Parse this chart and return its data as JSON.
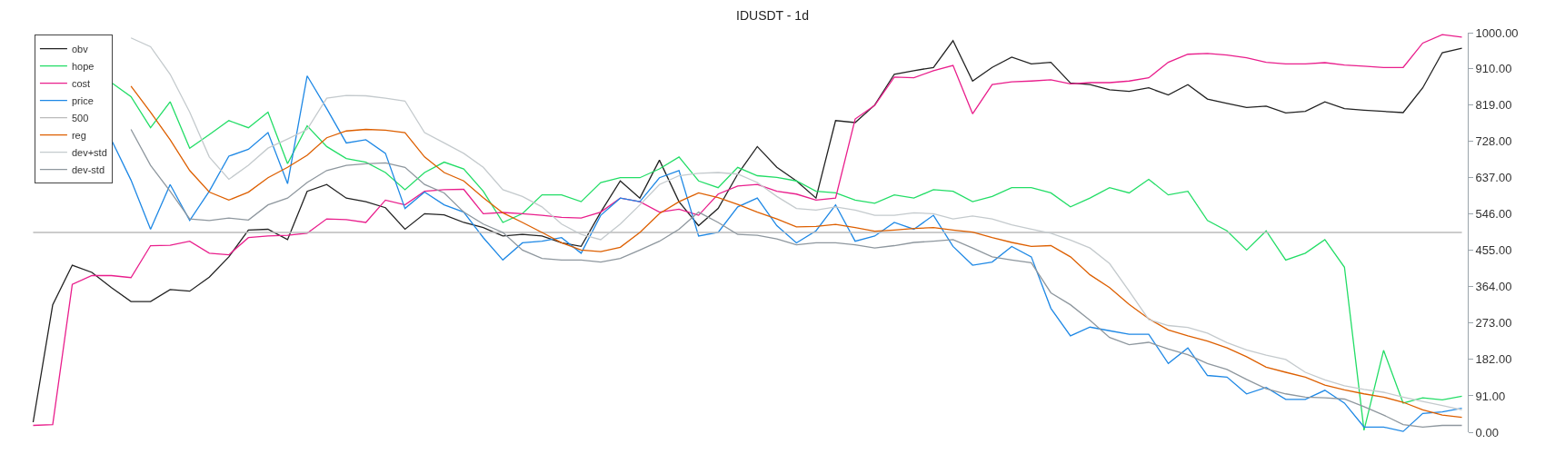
{
  "chart_data": {
    "type": "line",
    "title": "IDUSDT - 1d",
    "categories": [
      null,
      null,
      null,
      null,
      null,
      null,
      null,
      null,
      null,
      null,
      null,
      null,
      null,
      null,
      null,
      null,
      null,
      null,
      null,
      null,
      null,
      null,
      null,
      null,
      null,
      null,
      null,
      null,
      null,
      null,
      null,
      null,
      null,
      null,
      null,
      null,
      null,
      null,
      null,
      null,
      null,
      null,
      null,
      null,
      null,
      null,
      null,
      null,
      null,
      null,
      null,
      null,
      null,
      null,
      null,
      null,
      null,
      null,
      null,
      null,
      null,
      null,
      null,
      null,
      null,
      null,
      null,
      null,
      null,
      null,
      null,
      null,
      null,
      null
    ],
    "series": [
      {
        "name": "obv",
        "color": "#222222",
        "values": [
          25,
          319,
          418,
          400,
          362,
          327,
          327,
          357,
          353,
          388,
          439,
          506,
          508,
          482,
          603,
          620,
          586,
          577,
          562,
          508,
          547,
          544,
          525,
          512,
          491,
          495,
          491,
          474,
          465,
          551,
          629,
          586,
          681,
          577,
          517,
          560,
          646,
          715,
          663,
          629,
          586,
          780,
          775,
          819,
          896,
          905,
          913,
          980,
          879,
          913,
          939,
          922,
          926,
          874,
          870,
          857,
          853,
          862,
          844,
          870,
          834,
          823,
          813,
          816,
          799,
          803,
          827,
          810,
          806,
          803,
          800,
          862,
          950,
          961
        ]
      },
      {
        "name": "hope",
        "color": "#22dd66",
        "values": [
          null,
          null,
          null,
          null,
          875,
          840,
          762,
          827,
          711,
          745,
          780,
          762,
          801,
          672,
          767,
          715,
          685,
          676,
          650,
          607,
          650,
          676,
          659,
          603,
          525,
          547,
          594,
          594,
          577,
          625,
          637,
          637,
          659,
          689,
          629,
          612,
          663,
          642,
          638,
          629,
          603,
          599,
          581,
          573,
          594,
          586,
          607,
          603,
          577,
          590,
          612,
          612,
          599,
          564,
          586,
          612,
          599,
          633,
          594,
          603,
          530,
          504,
          456,
          504,
          431,
          448,
          482,
          413,
          5,
          205,
          73,
          86,
          81,
          90
        ]
      },
      {
        "name": "cost",
        "color": "#e91e8c",
        "values": [
          17,
          19,
          370,
          392,
          392,
          387,
          467,
          468,
          478,
          448,
          444,
          487,
          491,
          493,
          498,
          534,
          532,
          525,
          581,
          569,
          603,
          607,
          608,
          547,
          550,
          547,
          543,
          538,
          536,
          551,
          586,
          577,
          551,
          558,
          543,
          596,
          616,
          620,
          603,
          596,
          581,
          586,
          784,
          818,
          889,
          887,
          905,
          918,
          797,
          870,
          877,
          879,
          882,
          872,
          875,
          875,
          879,
          887,
          926,
          946,
          948,
          944,
          937,
          926,
          922,
          922,
          925,
          919,
          916,
          913,
          913,
          974,
          995,
          989
        ]
      },
      {
        "name": "price",
        "color": "#1e88e5",
        "values": [
          null,
          null,
          null,
          null,
          732,
          631,
          508,
          620,
          530,
          603,
          691,
          708,
          750,
          622,
          892,
          810,
          724,
          732,
          698,
          560,
          601,
          569,
          551,
          487,
          431,
          474,
          478,
          487,
          448,
          543,
          586,
          577,
          637,
          655,
          491,
          500,
          564,
          586,
          517,
          474,
          504,
          569,
          478,
          491,
          525,
          508,
          543,
          465,
          418,
          426,
          465,
          439,
          310,
          241,
          263,
          254,
          245,
          245,
          172,
          211,
          142,
          138,
          96,
          112,
          82,
          82,
          105,
          73,
          13,
          13,
          2,
          47,
          51,
          60
        ]
      },
      {
        "name": "500",
        "color": "#bbbbbb",
        "values": [
          500,
          500,
          500,
          500,
          500,
          500,
          500,
          500,
          500,
          500,
          500,
          500,
          500,
          500,
          500,
          500,
          500,
          500,
          500,
          500,
          500,
          500,
          500,
          500,
          500,
          500,
          500,
          500,
          500,
          500,
          500,
          500,
          500,
          500,
          500,
          500,
          500,
          500,
          500,
          500,
          500,
          500,
          500,
          500,
          500,
          500,
          500,
          500,
          500,
          500,
          500,
          500,
          500,
          500,
          500,
          500,
          500,
          500,
          500,
          500,
          500,
          500,
          500,
          500,
          500,
          500,
          500,
          500,
          500,
          500,
          500,
          500,
          500,
          500
        ]
      },
      {
        "name": "reg",
        "color": "#dd5f00",
        "values": [
          null,
          null,
          null,
          null,
          null,
          866,
          801,
          732,
          655,
          601,
          581,
          601,
          637,
          663,
          693,
          737,
          754,
          758,
          756,
          750,
          689,
          650,
          629,
          587,
          549,
          525,
          500,
          474,
          456,
          452,
          463,
          500,
          547,
          577,
          599,
          587,
          570,
          551,
          534,
          514,
          515,
          520,
          512,
          503,
          506,
          510,
          512,
          506,
          501,
          487,
          475,
          465,
          467,
          439,
          394,
          362,
          320,
          284,
          256,
          241,
          228,
          211,
          189,
          163,
          150,
          138,
          118,
          106,
          96,
          88,
          75,
          56,
          43,
          37
        ]
      },
      {
        "name": "dev+std",
        "color": "#c4cacd",
        "values": [
          null,
          null,
          null,
          null,
          null,
          987,
          965,
          896,
          801,
          689,
          633,
          668,
          711,
          734,
          758,
          836,
          843,
          842,
          836,
          829,
          750,
          724,
          698,
          663,
          607,
          590,
          564,
          521,
          495,
          482,
          521,
          569,
          620,
          642,
          648,
          650,
          646,
          625,
          590,
          560,
          556,
          564,
          556,
          543,
          543,
          549,
          547,
          534,
          541,
          534,
          519,
          508,
          498,
          481,
          461,
          422,
          353,
          282,
          267,
          262,
          248,
          224,
          206,
          193,
          182,
          150,
          131,
          116,
          107,
          100,
          88,
          77,
          67,
          56
        ]
      },
      {
        "name": "dev-std",
        "color": "#8e979e",
        "values": [
          null,
          null,
          null,
          null,
          null,
          758,
          668,
          603,
          534,
          530,
          536,
          531,
          569,
          586,
          625,
          655,
          668,
          672,
          674,
          663,
          620,
          599,
          551,
          521,
          500,
          456,
          435,
          431,
          431,
          426,
          435,
          456,
          478,
          508,
          551,
          525,
          495,
          493,
          484,
          469,
          474,
          474,
          469,
          461,
          467,
          475,
          478,
          482,
          461,
          439,
          431,
          424,
          349,
          319,
          280,
          237,
          219,
          225,
          208,
          194,
          172,
          157,
          132,
          109,
          96,
          88,
          86,
          83,
          64,
          43,
          19,
          13,
          17,
          17
        ]
      }
    ],
    "ylim": [
      0,
      1000
    ],
    "yticks": [
      {
        "value": 0,
        "label": "0.00"
      },
      {
        "value": 91,
        "label": "91.00"
      },
      {
        "value": 182,
        "label": "182.00"
      },
      {
        "value": 273,
        "label": "273.00"
      },
      {
        "value": 364,
        "label": "364.00"
      },
      {
        "value": 455,
        "label": "455.00"
      },
      {
        "value": 546,
        "label": "546.00"
      },
      {
        "value": 637,
        "label": "637.00"
      },
      {
        "value": 728,
        "label": "728.00"
      },
      {
        "value": 819,
        "label": "819.00"
      },
      {
        "value": 910,
        "label": "910.00"
      },
      {
        "value": 1000,
        "label": "1000.00"
      }
    ],
    "grid": false,
    "legend": "top left",
    "tick_labels": "y",
    "marker": "none",
    "line_style": "solid"
  }
}
